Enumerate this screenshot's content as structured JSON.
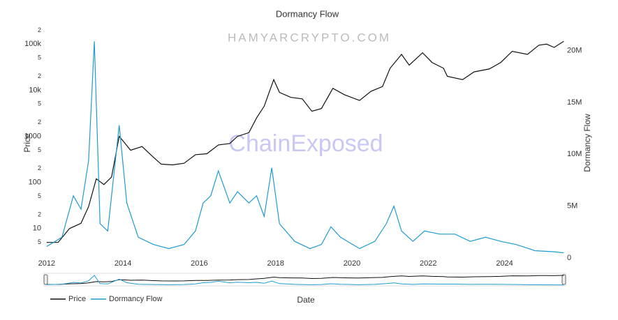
{
  "chart_data": {
    "type": "line",
    "title": "Dormancy Flow",
    "watermarks": [
      "HAMYARCRYPTO.COM",
      "ChainExposed"
    ],
    "x_label": "Date",
    "y_label": "Price",
    "y2_label": "Dormancy Flow",
    "log_y": true,
    "grid": false,
    "legend": "bottom-left",
    "range_slider": true,
    "xlim": [
      2011.93,
      2025.6
    ],
    "xticks": [
      2012,
      2014,
      2016,
      2018,
      2020,
      2022,
      2024
    ],
    "ylim": [
      2.3,
      250000
    ],
    "yticks": [
      {
        "value": 5,
        "label": "5"
      },
      10,
      {
        "value": 20,
        "label": "2"
      },
      {
        "value": 50,
        "label": "5"
      },
      100,
      {
        "value": 200,
        "label": "2"
      },
      {
        "value": 500,
        "label": "5"
      },
      1000,
      {
        "value": 2000,
        "label": "2"
      },
      {
        "value": 5000,
        "label": "5"
      },
      {
        "value": 10000,
        "label": "10k"
      },
      {
        "value": 20000,
        "label": "2"
      },
      {
        "value": 50000,
        "label": "5"
      },
      {
        "value": 100000,
        "label": "100k"
      },
      {
        "value": 200000,
        "label": "2"
      }
    ],
    "y2lim": [
      0,
      22400000
    ],
    "y2ticks": [
      0,
      {
        "value": 5000000,
        "label": "5M"
      },
      {
        "value": 10000000,
        "label": "10M"
      },
      {
        "value": 15000000,
        "label": "15M"
      },
      {
        "value": 20000000,
        "label": "20M"
      }
    ],
    "series": [
      {
        "name": "Price",
        "color": "#111111",
        "axis": "y",
        "x": [
          2012.0,
          2012.3,
          2012.6,
          2012.9,
          2013.1,
          2013.3,
          2013.5,
          2013.7,
          2013.9,
          2014.0,
          2014.2,
          2014.5,
          2014.8,
          2015.0,
          2015.3,
          2015.6,
          2015.9,
          2016.2,
          2016.5,
          2016.8,
          2017.0,
          2017.3,
          2017.5,
          2017.7,
          2017.95,
          2018.1,
          2018.4,
          2018.7,
          2018.95,
          2019.2,
          2019.5,
          2019.8,
          2020.2,
          2020.5,
          2020.8,
          2021.0,
          2021.3,
          2021.5,
          2021.85,
          2022.1,
          2022.4,
          2022.5,
          2022.9,
          2023.2,
          2023.6,
          2023.9,
          2024.2,
          2024.6,
          2024.9,
          2025.1,
          2025.3,
          2025.55
        ],
        "values": [
          5,
          5,
          10,
          13,
          30,
          120,
          90,
          130,
          1000,
          800,
          500,
          600,
          350,
          250,
          240,
          260,
          400,
          420,
          650,
          700,
          1000,
          1200,
          2500,
          4500,
          17000,
          9000,
          7000,
          6500,
          3500,
          4000,
          11000,
          8000,
          6000,
          9500,
          12000,
          30000,
          60000,
          35000,
          65000,
          40000,
          30000,
          20000,
          17000,
          25000,
          29000,
          40000,
          70000,
          60000,
          95000,
          100000,
          85000,
          115000
        ]
      },
      {
        "name": "Dormancy Flow",
        "color": "#1f9bcf",
        "axis": "y2",
        "x": [
          2012.0,
          2012.4,
          2012.7,
          2012.9,
          2013.1,
          2013.25,
          2013.4,
          2013.6,
          2013.9,
          2014.1,
          2014.4,
          2014.8,
          2015.2,
          2015.6,
          2015.9,
          2016.1,
          2016.3,
          2016.5,
          2016.8,
          2017.0,
          2017.3,
          2017.5,
          2017.7,
          2017.9,
          2018.1,
          2018.5,
          2018.9,
          2019.2,
          2019.45,
          2019.7,
          2020.2,
          2020.6,
          2020.9,
          2021.1,
          2021.3,
          2021.6,
          2021.9,
          2022.3,
          2022.7,
          2023.1,
          2023.5,
          2023.9,
          2024.3,
          2024.8,
          2025.3,
          2025.55
        ],
        "values": [
          1100000,
          2000000,
          6000000,
          4700000,
          9400000,
          20900000,
          3300000,
          2600000,
          12800000,
          5300000,
          2000000,
          1300000,
          900000,
          1300000,
          2600000,
          5300000,
          6000000,
          8400000,
          5300000,
          6400000,
          5300000,
          6000000,
          4000000,
          8700000,
          3300000,
          1600000,
          900000,
          1300000,
          3000000,
          2000000,
          900000,
          1600000,
          3300000,
          5000000,
          2600000,
          1600000,
          2600000,
          2300000,
          2300000,
          1600000,
          2000000,
          1600000,
          1300000,
          700000,
          600000,
          500000
        ]
      }
    ]
  }
}
